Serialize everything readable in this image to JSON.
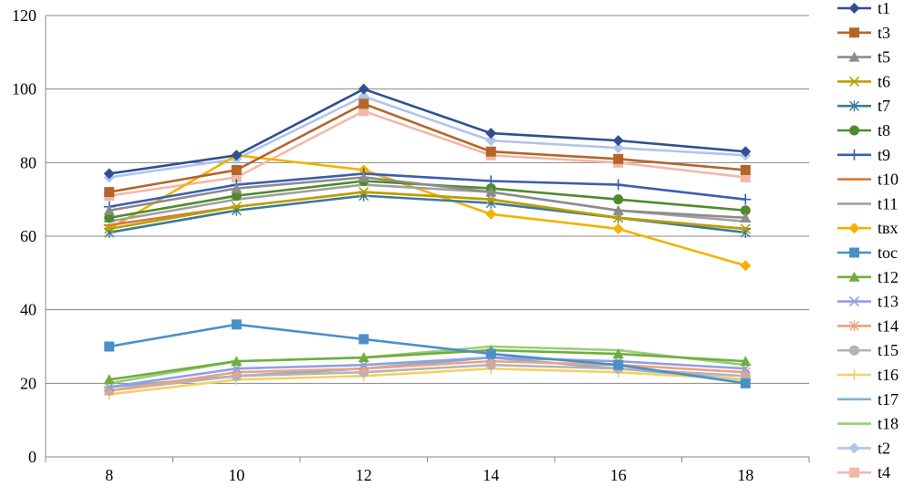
{
  "chart_data": {
    "type": "line",
    "title": "",
    "xlabel": "",
    "ylabel": "",
    "x": [
      8,
      10,
      12,
      14,
      16,
      18
    ],
    "x_tick_labels": [
      "8",
      "10",
      "12",
      "14",
      "16",
      "18"
    ],
    "y_tick_labels": [
      "0",
      "20",
      "40",
      "60",
      "80",
      "100",
      "120"
    ],
    "ylim": [
      0,
      120
    ],
    "grid": true,
    "legend_position": "right",
    "series": [
      {
        "name": "t1",
        "marker": "diamond",
        "color": "#2F4F8F",
        "values": [
          77,
          82,
          100,
          88,
          86,
          83
        ]
      },
      {
        "name": "t3",
        "marker": "square",
        "color": "#B5652A",
        "values": [
          72,
          78,
          96,
          83,
          81,
          78
        ]
      },
      {
        "name": "t5",
        "marker": "triangle",
        "color": "#8C8C8C",
        "values": [
          67,
          73,
          76,
          72,
          67,
          65
        ]
      },
      {
        "name": "t6",
        "marker": "x",
        "color": "#B8A000",
        "values": [
          62,
          68,
          72,
          70,
          65,
          62
        ]
      },
      {
        "name": "t7",
        "marker": "star",
        "color": "#3C7A9A",
        "values": [
          61,
          67,
          71,
          69,
          65,
          61
        ]
      },
      {
        "name": "t8",
        "marker": "circle",
        "color": "#4F8A2E",
        "values": [
          65,
          71,
          75,
          73,
          70,
          67
        ]
      },
      {
        "name": "t9",
        "marker": "plus",
        "color": "#3A5FAF",
        "values": [
          68,
          74,
          77,
          75,
          74,
          70
        ]
      },
      {
        "name": "t10",
        "marker": "dash",
        "color": "#D8783A",
        "values": [
          63,
          68,
          72,
          70,
          65,
          62
        ]
      },
      {
        "name": "t11",
        "marker": "dash",
        "color": "#A0A0A0",
        "values": [
          64,
          70,
          74,
          72,
          67,
          64
        ]
      },
      {
        "name": "tвх",
        "marker": "diamond",
        "color": "#F2B200",
        "values": [
          62,
          82,
          78,
          66,
          62,
          52
        ]
      },
      {
        "name": "toc",
        "marker": "square",
        "color": "#4A90C8",
        "values": [
          30,
          36,
          32,
          28,
          25,
          20
        ]
      },
      {
        "name": "t12",
        "marker": "triangle",
        "color": "#6FAE3E",
        "values": [
          21,
          26,
          27,
          29,
          28,
          26
        ]
      },
      {
        "name": "t13",
        "marker": "x",
        "color": "#8FA0E0",
        "values": [
          19,
          24,
          25,
          27,
          26,
          24
        ]
      },
      {
        "name": "t14",
        "marker": "star",
        "color": "#F0A080",
        "values": [
          18,
          23,
          24,
          26,
          25,
          23
        ]
      },
      {
        "name": "t15",
        "marker": "circle",
        "color": "#B4B4B4",
        "values": [
          18,
          22,
          23,
          25,
          24,
          22
        ]
      },
      {
        "name": "t16",
        "marker": "plus",
        "color": "#F5D060",
        "values": [
          17,
          21,
          22,
          24,
          23,
          21
        ]
      },
      {
        "name": "t17",
        "marker": "dash",
        "color": "#7FB0D8",
        "values": [
          19,
          22,
          24,
          27,
          24,
          21
        ]
      },
      {
        "name": "t18",
        "marker": "dash",
        "color": "#9ACD7A",
        "values": [
          20,
          26,
          27,
          30,
          29,
          25
        ]
      },
      {
        "name": "t2",
        "marker": "diamond",
        "color": "#B0C4EC",
        "values": [
          76,
          81,
          98,
          86,
          84,
          82
        ]
      },
      {
        "name": "t4",
        "marker": "square",
        "color": "#F2B8A8",
        "values": [
          71,
          76,
          94,
          82,
          80,
          76
        ]
      }
    ]
  }
}
